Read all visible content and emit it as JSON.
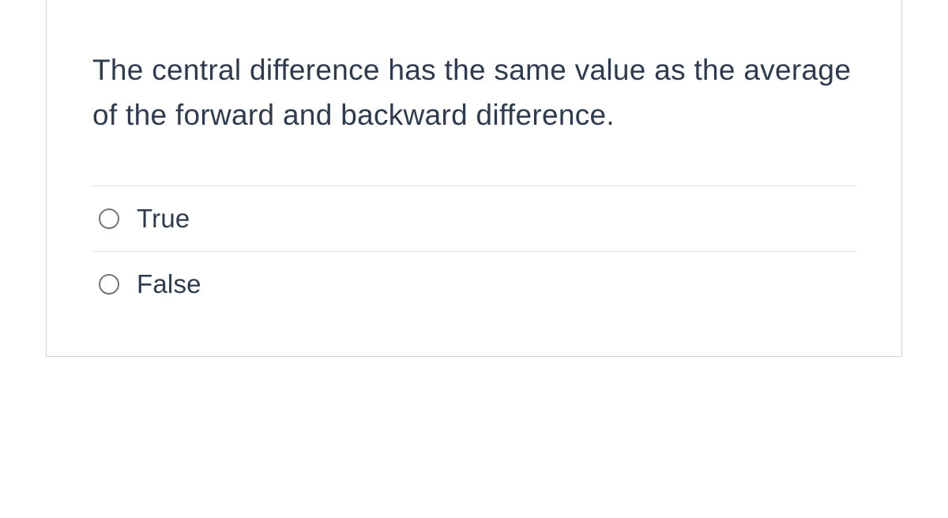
{
  "question": {
    "text": "The central difference has the same value as the average of the forward and backward difference.",
    "options": [
      {
        "label": "True",
        "selected": false
      },
      {
        "label": "False",
        "selected": false
      }
    ]
  },
  "colors": {
    "text_primary": "#2e3b4e",
    "border_card": "#d3d3d3",
    "border_divider": "#e2e2e2",
    "radio_border": "#757575",
    "background": "#ffffff"
  },
  "typography": {
    "question_fontsize": 37,
    "option_fontsize": 33,
    "font_weight": 300
  }
}
